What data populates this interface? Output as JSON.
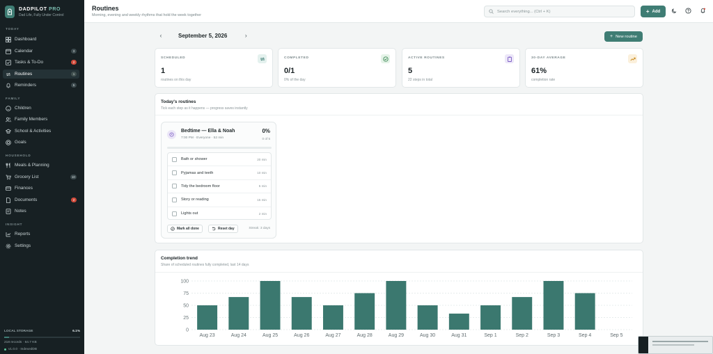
{
  "brand": {
    "name": "DADPILOT",
    "suffix": "PRO",
    "tagline": "Dad Life, Fully Under Control"
  },
  "sidebar": {
    "sections": [
      {
        "label": "TODAY"
      },
      {
        "label": "FAMILY"
      },
      {
        "label": "HOUSEHOLD"
      },
      {
        "label": "INSIGHT"
      }
    ],
    "items": [
      {
        "label": "Dashboard",
        "icon": "dashboard-icon"
      },
      {
        "label": "Calendar",
        "icon": "calendar-icon",
        "badge": "3"
      },
      {
        "label": "Tasks & To-Do",
        "icon": "checklist-icon",
        "badge": "2"
      },
      {
        "label": "Routines",
        "icon": "repeat-icon",
        "badge": "1"
      },
      {
        "label": "Reminders",
        "icon": "bell-icon",
        "badge": "5"
      },
      {
        "label": "Children",
        "icon": "smile-icon"
      },
      {
        "label": "Family Members",
        "icon": "users-icon"
      },
      {
        "label": "School & Activities",
        "icon": "school-icon"
      },
      {
        "label": "Goals",
        "icon": "target-icon"
      },
      {
        "label": "Meals & Planning",
        "icon": "utensils-icon"
      },
      {
        "label": "Grocery List",
        "icon": "cart-icon",
        "badge": "10"
      },
      {
        "label": "Finances",
        "icon": "wallet-icon"
      },
      {
        "label": "Documents",
        "icon": "file-icon",
        "badge": "2"
      },
      {
        "label": "Notes",
        "icon": "note-icon"
      },
      {
        "label": "Reports",
        "icon": "chart-icon"
      },
      {
        "label": "Settings",
        "icon": "gear-icon"
      }
    ],
    "storage": {
      "label": "LOCAL STORAGE",
      "percent": "6.1%",
      "fill": 0.061,
      "records": "218 records · 64.7 KB",
      "version": "v1.0.0 · IndexedDB"
    }
  },
  "header": {
    "title": "Routines",
    "subtitle": "Morning, evening and weekly rhythms that hold the week together",
    "search_placeholder": "Search everything... (Ctrl + K)",
    "add_label": "Add"
  },
  "date_nav": {
    "date": "September 5, 2026",
    "new_routine_label": "New routine"
  },
  "stats": [
    {
      "label": "SCHEDULED",
      "value": "1",
      "sub": "routines on this day",
      "icon": "repeat-icon",
      "color": "#3f7d74",
      "bg": "#e4f1ee"
    },
    {
      "label": "COMPLETED",
      "value": "0/1",
      "sub": "0% of the day",
      "icon": "check-circle-icon",
      "color": "#3f8a57",
      "bg": "#e5f3e8"
    },
    {
      "label": "ACTIVE ROUTINES",
      "value": "5",
      "sub": "22 steps in total",
      "icon": "clipboard-icon",
      "color": "#7b5bc4",
      "bg": "#ece7f8"
    },
    {
      "label": "30-DAY AVERAGE",
      "value": "61%",
      "sub": "completion rate",
      "icon": "trending-up-icon",
      "color": "#c98a1e",
      "bg": "#fbf0dc"
    }
  ],
  "today": {
    "title": "Today's routines",
    "subtitle": "Tick each step as it happens — progress saves instantly"
  },
  "routine": {
    "title": "Bedtime — Ella & Noah",
    "meta": "7:00 PM · Everyone · 52 min",
    "percent": "0%",
    "progress": 0,
    "count": "0 of 5",
    "steps": [
      {
        "label": "Bath or shower",
        "duration": "20 min"
      },
      {
        "label": "Pyjamas and teeth",
        "duration": "10 min"
      },
      {
        "label": "Tidy the bedroom floor",
        "duration": "5 min"
      },
      {
        "label": "Story or reading",
        "duration": "15 min"
      },
      {
        "label": "Lights out",
        "duration": "2 min"
      }
    ],
    "mark_all_label": "Mark all done",
    "reset_label": "Reset day",
    "streak": "Streak: 3 days"
  },
  "trend": {
    "title": "Completion trend",
    "subtitle": "Share of scheduled routines fully completed, last 14 days"
  },
  "chart_data": {
    "type": "bar",
    "categories": [
      "Aug 23",
      "Aug 24",
      "Aug 25",
      "Aug 26",
      "Aug 27",
      "Aug 28",
      "Aug 29",
      "Aug 30",
      "Aug 31",
      "Sep 1",
      "Sep 2",
      "Sep 3",
      "Sep 4",
      "Sep 5"
    ],
    "values": [
      50,
      67,
      100,
      67,
      50,
      75,
      100,
      50,
      33,
      50,
      67,
      100,
      75,
      0
    ],
    "ylim": [
      0,
      100
    ],
    "yticks": [
      0,
      25,
      50,
      75,
      100
    ],
    "grid": true,
    "color": "#3b786f"
  }
}
